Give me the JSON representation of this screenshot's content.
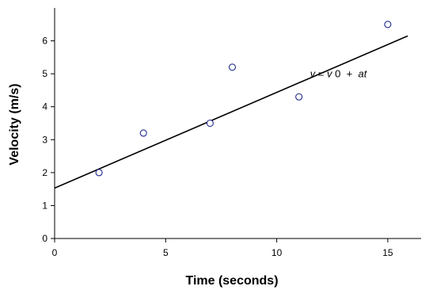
{
  "chart_data": {
    "type": "scatter",
    "title": "",
    "xlabel": "Time (seconds)",
    "ylabel": "Velocity (m/s)",
    "xlim": [
      0,
      16.5
    ],
    "ylim": [
      0,
      7
    ],
    "x_ticks": [
      0,
      5,
      10,
      15
    ],
    "y_ticks": [
      0,
      1,
      2,
      3,
      4,
      5,
      6
    ],
    "grid": false,
    "legend": "none",
    "points": [
      {
        "x": 2,
        "y": 2.0
      },
      {
        "x": 4,
        "y": 3.2
      },
      {
        "x": 7,
        "y": 3.5
      },
      {
        "x": 8,
        "y": 5.2
      },
      {
        "x": 11,
        "y": 4.3
      },
      {
        "x": 15,
        "y": 6.5
      }
    ],
    "fit_line": {
      "x_start": 0,
      "y_start": 1.53,
      "x_end": 15.9,
      "y_end": 6.15
    },
    "annotation": {
      "v": "v",
      "eq": "=",
      "v0": "v",
      "zero": "0",
      "plus": " + ",
      "at": "at",
      "x": 11.5,
      "y": 4.9
    },
    "colors": {
      "marker": "#1f2a8a",
      "line": "#000000",
      "axis": "#000000"
    }
  }
}
